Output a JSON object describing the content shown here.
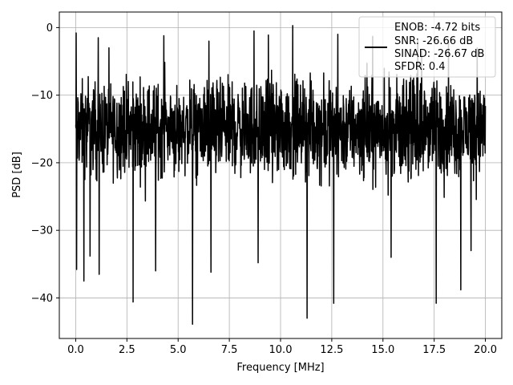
{
  "chart_data": {
    "type": "line",
    "xlabel": "Frequency [MHz]",
    "ylabel": "PSD [dB]",
    "xlim": [
      -0.8,
      20.8
    ],
    "ylim": [
      -46,
      2.3
    ],
    "xticks": [
      0.0,
      2.5,
      5.0,
      7.5,
      10.0,
      12.5,
      15.0,
      17.5,
      20.0
    ],
    "xtick_labels": [
      "0.0",
      "2.5",
      "5.0",
      "7.5",
      "10.0",
      "12.5",
      "15.0",
      "17.5",
      "20.0"
    ],
    "yticks": [
      0,
      -10,
      -20,
      -30,
      -40
    ],
    "ytick_labels": [
      "0",
      "−10",
      "−20",
      "−30",
      "−40"
    ],
    "grid": true,
    "legend": {
      "placement": "top-right",
      "entries": [
        "ENOB: -4.72 bits",
        "SNR: -26.66 dB",
        "SINAD: -26.67 dB",
        "SFDR: 0.4"
      ]
    },
    "series": [
      {
        "color": "#000000",
        "x_range": [
          0.0,
          20.0
        ],
        "typical_range": [
          -25,
          -5
        ],
        "envelope_max": 0.3,
        "peaks": [
          {
            "x": 0.02,
            "y": -0.8
          },
          {
            "x": 1.1,
            "y": -1.5
          },
          {
            "x": 2.8,
            "y": -1.8
          },
          {
            "x": 4.3,
            "y": -1.2
          },
          {
            "x": 6.5,
            "y": -2.0
          },
          {
            "x": 8.7,
            "y": -0.5
          },
          {
            "x": 9.4,
            "y": -1.1
          },
          {
            "x": 10.6,
            "y": 0.3
          },
          {
            "x": 12.8,
            "y": -1.0
          },
          {
            "x": 14.5,
            "y": -1.3
          },
          {
            "x": 16.7,
            "y": -1.9
          },
          {
            "x": 18.2,
            "y": -2.2
          },
          {
            "x": 19.6,
            "y": -3.0
          }
        ],
        "dips": [
          {
            "x": 0.05,
            "y": -35.8
          },
          {
            "x": 0.4,
            "y": -37.5
          },
          {
            "x": 0.7,
            "y": -33.8
          },
          {
            "x": 1.15,
            "y": -36.5
          },
          {
            "x": 2.8,
            "y": -40.6
          },
          {
            "x": 3.9,
            "y": -36.0
          },
          {
            "x": 5.7,
            "y": -43.9
          },
          {
            "x": 6.6,
            "y": -36.2
          },
          {
            "x": 8.9,
            "y": -34.8
          },
          {
            "x": 11.3,
            "y": -43.0
          },
          {
            "x": 12.6,
            "y": -40.8
          },
          {
            "x": 15.4,
            "y": -34.0
          },
          {
            "x": 17.6,
            "y": -40.8
          },
          {
            "x": 18.8,
            "y": -38.8
          },
          {
            "x": 19.3,
            "y": -33.0
          }
        ]
      }
    ]
  }
}
